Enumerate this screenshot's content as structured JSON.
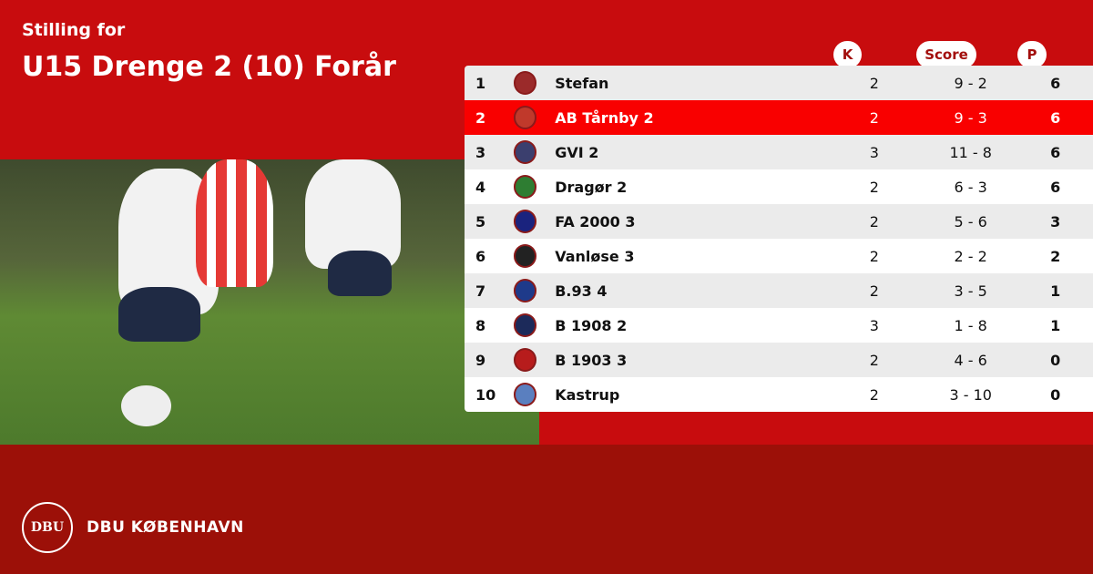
{
  "header": {
    "subtitle": "Stilling for",
    "title": "U15 Drenge 2 (10) Forår"
  },
  "columns": {
    "k": "K",
    "score": "Score",
    "p": "P"
  },
  "rows": [
    {
      "pos": "1",
      "team": "Stefan",
      "k": "2",
      "score": "9 - 2",
      "p": "6",
      "logo": "#9b2a2a"
    },
    {
      "pos": "2",
      "team": "AB Tårnby 2",
      "k": "2",
      "score": "9 - 3",
      "p": "6",
      "logo": "#c0392b",
      "highlight": true
    },
    {
      "pos": "3",
      "team": "GVI 2",
      "k": "3",
      "score": "11 - 8",
      "p": "6",
      "logo": "#3b3f6e"
    },
    {
      "pos": "4",
      "team": "Dragør 2",
      "k": "2",
      "score": "6 - 3",
      "p": "6",
      "logo": "#2e7d32"
    },
    {
      "pos": "5",
      "team": "FA 2000 3",
      "k": "2",
      "score": "5 - 6",
      "p": "3",
      "logo": "#1a237e"
    },
    {
      "pos": "6",
      "team": "Vanløse 3",
      "k": "2",
      "score": "2 - 2",
      "p": "2",
      "logo": "#222222"
    },
    {
      "pos": "7",
      "team": "B.93 4",
      "k": "2",
      "score": "3 - 5",
      "p": "1",
      "logo": "#1e3a8a"
    },
    {
      "pos": "8",
      "team": "B 1908 2",
      "k": "3",
      "score": "1 - 8",
      "p": "1",
      "logo": "#1c2a5a"
    },
    {
      "pos": "9",
      "team": "B 1903 3",
      "k": "2",
      "score": "4 - 6",
      "p": "0",
      "logo": "#b71c1c"
    },
    {
      "pos": "10",
      "team": "Kastrup",
      "k": "2",
      "score": "3 - 10",
      "p": "0",
      "logo": "#5a7fbf"
    }
  ],
  "footer": {
    "org": "DBU KØBENHAVN",
    "emblem": "DBU"
  },
  "colors": {
    "top": "#c80c0e",
    "bottom": "#9c1008",
    "highlight": "#f90000"
  }
}
